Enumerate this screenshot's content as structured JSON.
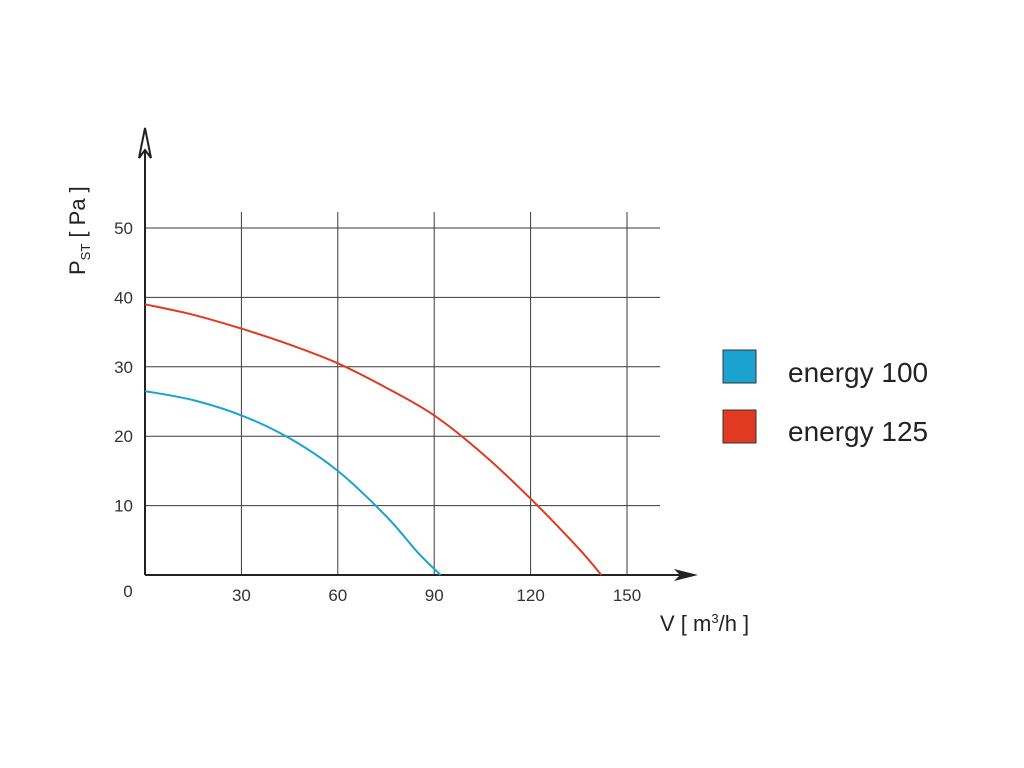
{
  "chart_data": {
    "type": "line",
    "title": "",
    "xlabel": {
      "prefix": "V [ m",
      "sup": "3",
      "suffix": "/h ]"
    },
    "ylabel": {
      "main": "P",
      "sub": "ST",
      "suffix": " [ Pa ]"
    },
    "origin_label": "0",
    "xlim": [
      0,
      160
    ],
    "ylim": [
      0,
      54
    ],
    "xticks": [
      30,
      60,
      90,
      120,
      150
    ],
    "xtick_labels": [
      "30",
      "60",
      "90",
      "120",
      "150"
    ],
    "yticks": [
      10,
      20,
      30,
      40,
      50
    ],
    "ytick_labels": [
      "10",
      "20",
      "30",
      "40",
      "50"
    ],
    "grid": true,
    "legend_position": "right",
    "series": [
      {
        "name": "energy  100",
        "color": "#1ba3d0",
        "x": [
          0,
          15,
          30,
          45,
          60,
          75,
          85,
          92
        ],
        "y": [
          26.5,
          25.2,
          23,
          19.7,
          15,
          8.5,
          3.2,
          0
        ]
      },
      {
        "name": "energy  125",
        "color": "#e03a22",
        "x": [
          0,
          15,
          30,
          45,
          60,
          75,
          90,
          105,
          120,
          135,
          142
        ],
        "y": [
          39,
          37.5,
          35.5,
          33.2,
          30.5,
          27,
          23,
          17.5,
          11,
          3.8,
          0
        ]
      }
    ]
  }
}
